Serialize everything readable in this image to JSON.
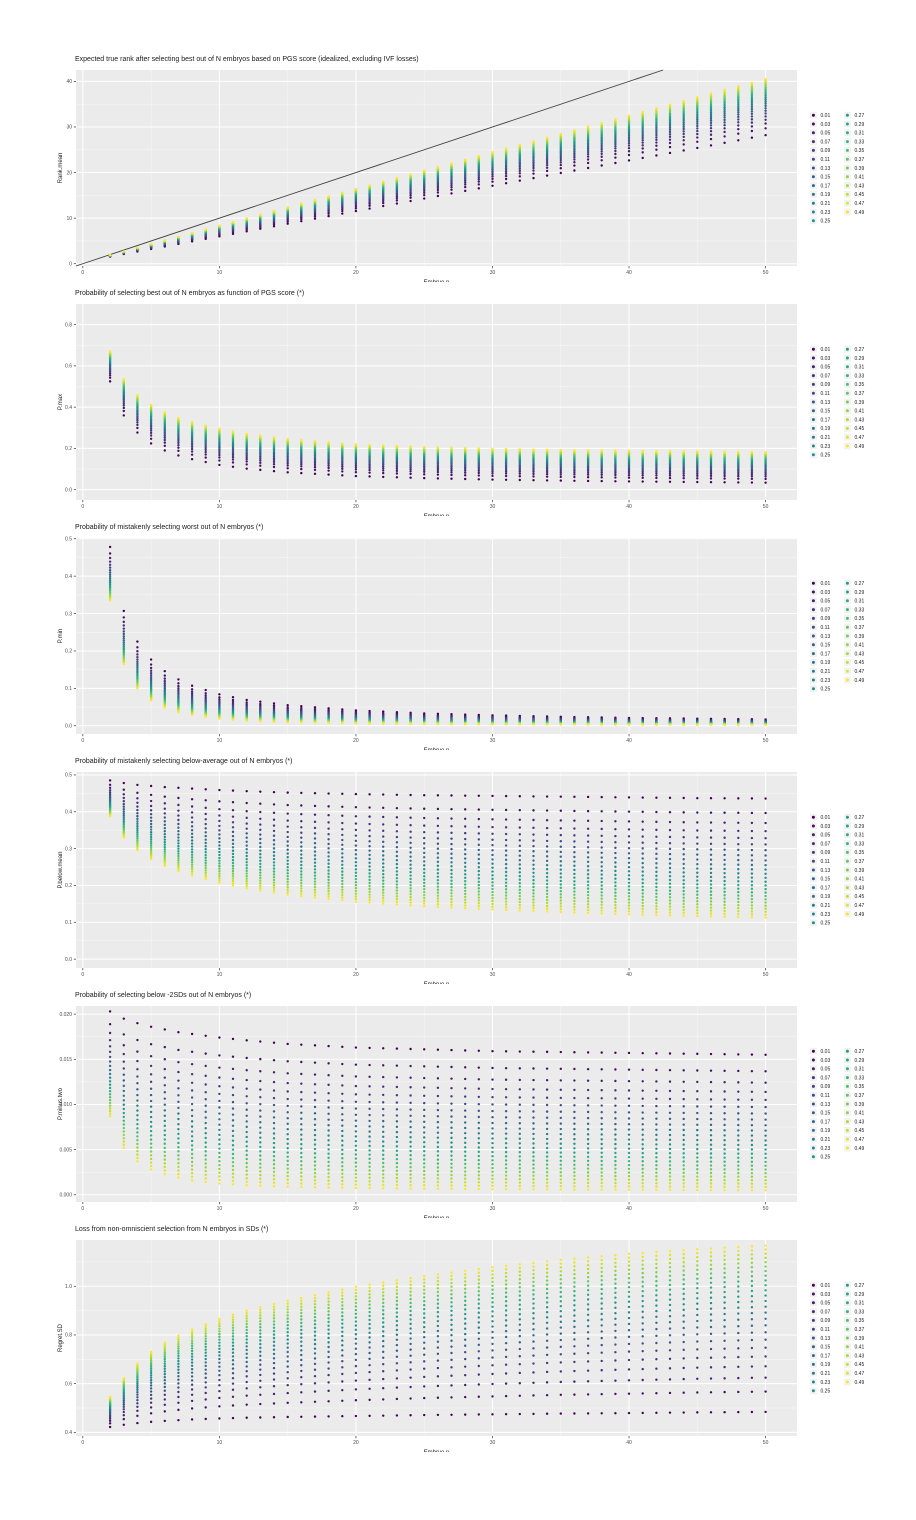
{
  "page": {
    "background": "#ffffff",
    "description_note": "Six stacked ggplot-style scatter panels, viridis-colored by PGS variance explained (0.01-0.49), x = number of embryos N (2-50)"
  },
  "x_axis": {
    "label": "Embryo.n",
    "ticks": [
      0,
      10,
      20,
      30,
      40,
      50
    ],
    "tick_labels": [
      "0",
      "10",
      "20",
      "30",
      "40",
      "50"
    ],
    "xlim": [
      -0.5,
      52.3
    ],
    "n_range": [
      2,
      50
    ],
    "n_step": 1
  },
  "legend": {
    "position": "right",
    "columns": 2,
    "column_split": 13,
    "labels": [
      "0.01",
      "0.03",
      "0.05",
      "0.07",
      "0.09",
      "0.11",
      "0.13",
      "0.15",
      "0.17",
      "0.19",
      "0.21",
      "0.23",
      "0.25",
      "0.27",
      "0.29",
      "0.31",
      "0.33",
      "0.35",
      "0.37",
      "0.39",
      "0.41",
      "0.43",
      "0.45",
      "0.47",
      "0.49"
    ]
  },
  "r2_values": [
    0.01,
    0.03,
    0.05,
    0.07,
    0.09,
    0.11,
    0.13,
    0.15,
    0.17,
    0.19,
    0.21,
    0.23,
    0.25,
    0.27,
    0.29,
    0.31,
    0.33,
    0.35,
    0.37,
    0.39,
    0.41,
    0.43,
    0.45,
    0.47,
    0.49
  ],
  "palette": {
    "name": "viridis",
    "anchors": [
      "#440154",
      "#482878",
      "#3E4A89",
      "#31688E",
      "#26828E",
      "#1F9E89",
      "#35B779",
      "#6DCD59",
      "#B4DE2C",
      "#FDE725"
    ],
    "panel_bg": "#EBEBEB",
    "grid_major": "#FFFFFF",
    "grid_minor": "#FFFFFF",
    "tick_mark": "#333333",
    "tick_text": "#4D4D4D",
    "title_text": "#1A1A1A",
    "legend_key_bg": "#F2F2F2",
    "abline": "#404040"
  },
  "chart_data": [
    {
      "type": "scatter",
      "title": "Expected true rank after selecting best out of N embryos based on PGS score (idealized, excluding IVF losses)",
      "xlabel": "Embryo.n",
      "ylabel": "Rank.mean",
      "ylim": [
        -0.5,
        42.5
      ],
      "yticks": [
        0,
        10,
        20,
        30,
        40
      ],
      "ytick_labels": [
        "0",
        "10",
        "20",
        "30",
        "40"
      ],
      "identity_line": true,
      "interpolation": "value(N,r2) = lo(N) + (hi(N)-lo(N)) * (sqrt(r2)-0.1)/0.6",
      "anchors_n": [
        2,
        3,
        4,
        5,
        6,
        7,
        8,
        10,
        12,
        15,
        20,
        25,
        30,
        35,
        40,
        45,
        50
      ],
      "curve_r2_001": [
        1.55,
        2.12,
        2.67,
        3.23,
        3.78,
        4.34,
        4.89,
        6.0,
        7.1,
        8.78,
        11.55,
        14.3,
        17.1,
        19.9,
        22.65,
        25.4,
        28.2
      ],
      "curve_r2_049": [
        1.89,
        2.7,
        3.5,
        4.3,
        5.11,
        5.91,
        6.72,
        8.33,
        9.94,
        12.35,
        16.38,
        20.4,
        24.43,
        28.45,
        32.48,
        36.5,
        40.53
      ]
    },
    {
      "type": "scatter",
      "title": "Probability of selecting best out of N embryos as function of PGS score (*)",
      "xlabel": "Embryo.n",
      "ylabel": "P.max",
      "ylim": [
        -0.05,
        0.9
      ],
      "yticks": [
        0,
        0.2,
        0.4,
        0.6,
        0.8
      ],
      "ytick_labels": [
        "0.0",
        "0.2",
        "0.4",
        "0.6",
        "0.8"
      ],
      "identity_line": false,
      "interpolation": "value(N,r2) = lo(N) + (hi(N)-lo(N)) * (sqrt(r2)-0.1)/0.6",
      "anchors_n": [
        2,
        3,
        4,
        5,
        6,
        7,
        8,
        10,
        12,
        15,
        20,
        25,
        30,
        35,
        40,
        45,
        50
      ],
      "curve_r2_001": [
        0.525,
        0.36,
        0.277,
        0.224,
        0.19,
        0.166,
        0.148,
        0.12,
        0.102,
        0.084,
        0.066,
        0.056,
        0.049,
        0.044,
        0.04,
        0.037,
        0.034
      ],
      "curve_r2_049": [
        0.67,
        0.535,
        0.458,
        0.41,
        0.375,
        0.348,
        0.327,
        0.295,
        0.27,
        0.245,
        0.219,
        0.206,
        0.198,
        0.192,
        0.188,
        0.185,
        0.182
      ]
    },
    {
      "type": "scatter",
      "title": "Probability of mistakenly selecting worst out of N embryos (*)",
      "xlabel": "Embryo.n",
      "ylabel": "P.min",
      "ylim": [
        -0.022,
        0.502
      ],
      "yticks": [
        0,
        0.1,
        0.2,
        0.3,
        0.4,
        0.5
      ],
      "ytick_labels": [
        "0.0",
        "0.1",
        "0.2",
        "0.3",
        "0.4",
        "0.5"
      ],
      "identity_line": false,
      "interpolation": "value(N,r2) = lo(N) + (hi(N)-lo(N)) * (sqrt(r2)-0.1)/0.6",
      "anchors_n": [
        2,
        3,
        4,
        5,
        6,
        7,
        8,
        10,
        12,
        15,
        20,
        25,
        30,
        35,
        40,
        45,
        50
      ],
      "curve_r2_001": [
        0.478,
        0.307,
        0.225,
        0.177,
        0.146,
        0.124,
        0.107,
        0.084,
        0.069,
        0.055,
        0.041,
        0.033,
        0.028,
        0.024,
        0.021,
        0.019,
        0.017
      ],
      "curve_r2_049": [
        0.335,
        0.165,
        0.1,
        0.068,
        0.049,
        0.037,
        0.029,
        0.019,
        0.0135,
        0.0095,
        0.0063,
        0.0047,
        0.0038,
        0.0032,
        0.0028,
        0.0025,
        0.0022
      ]
    },
    {
      "type": "scatter",
      "title": "Probability of mistakenly selecting below-average out of N embryos (*)",
      "xlabel": "Embryo.n",
      "ylabel": "P.below.mean",
      "ylim": [
        -0.024,
        0.508
      ],
      "yticks": [
        0,
        0.1,
        0.2,
        0.3,
        0.4,
        0.5
      ],
      "ytick_labels": [
        "0.0",
        "0.1",
        "0.2",
        "0.3",
        "0.4",
        "0.5"
      ],
      "identity_line": false,
      "interpolation": "value(N,r2) = lo(N) + (hi(N)-lo(N)) * (sqrt(r2)-0.1)/0.6",
      "anchors_n": [
        2,
        3,
        4,
        5,
        6,
        7,
        8,
        10,
        12,
        15,
        20,
        25,
        30,
        35,
        40,
        45,
        50
      ],
      "curve_r2_001": [
        0.485,
        0.478,
        0.473,
        0.47,
        0.467,
        0.465,
        0.463,
        0.459,
        0.456,
        0.452,
        0.448,
        0.445,
        0.443,
        0.441,
        0.439,
        0.437,
        0.436
      ],
      "curve_r2_049": [
        0.388,
        0.33,
        0.296,
        0.272,
        0.253,
        0.239,
        0.227,
        0.207,
        0.192,
        0.175,
        0.156,
        0.144,
        0.135,
        0.128,
        0.122,
        0.117,
        0.113
      ]
    },
    {
      "type": "scatter",
      "title": "Probability of selecting below -2SDs out of N embryos (*)",
      "xlabel": "Embryo.n",
      "ylabel": "P.minus.two",
      "ylim": [
        -0.0008,
        0.0209
      ],
      "yticks": [
        0,
        0.005,
        0.01,
        0.015,
        0.02
      ],
      "ytick_labels": [
        "0.000",
        "0.005",
        "0.010",
        "0.015",
        "0.020"
      ],
      "identity_line": false,
      "interpolation": "value(N,r2) = lo(N) + (hi(N)-lo(N)) * (sqrt(r2)-0.1)/0.6",
      "anchors_n": [
        2,
        3,
        4,
        5,
        6,
        7,
        8,
        10,
        12,
        15,
        20,
        25,
        30,
        35,
        40,
        45,
        50
      ],
      "curve_r2_001": [
        0.0203,
        0.0195,
        0.019,
        0.0186,
        0.0183,
        0.018,
        0.0178,
        0.0174,
        0.0171,
        0.0167,
        0.0163,
        0.0161,
        0.0159,
        0.0158,
        0.0157,
        0.0156,
        0.0155
      ],
      "curve_r2_049": [
        0.0087,
        0.0052,
        0.0037,
        0.0028,
        0.0023,
        0.0019,
        0.0016,
        0.00125,
        0.00105,
        0.0009,
        0.00075,
        0.00068,
        0.00062,
        0.00058,
        0.00055,
        0.00052,
        0.0005
      ]
    },
    {
      "type": "scatter",
      "title": "Loss from non-omniscient selection from N embryos in SDs (*)",
      "xlabel": "Embryo.n",
      "ylabel": "Regret.SD",
      "ylim": [
        0.385,
        1.19
      ],
      "yticks": [
        0.4,
        0.6,
        0.8,
        1.0
      ],
      "ytick_labels": [
        "0.4",
        "0.6",
        "0.8",
        "1.0"
      ],
      "identity_line": false,
      "interpolation": "value(N,r2) = lo(N) + (hi(N)-lo(N)) * (sqrt(r2)-0.1)/0.6",
      "anchors_n": [
        2,
        3,
        4,
        5,
        6,
        7,
        8,
        10,
        12,
        15,
        20,
        25,
        30,
        35,
        40,
        45,
        50
      ],
      "curve_r2_001": [
        0.422,
        0.431,
        0.438,
        0.443,
        0.447,
        0.45,
        0.453,
        0.457,
        0.46,
        0.463,
        0.467,
        0.471,
        0.474,
        0.477,
        0.479,
        0.482,
        0.484
      ],
      "curve_r2_049": [
        0.545,
        0.622,
        0.682,
        0.73,
        0.768,
        0.797,
        0.822,
        0.866,
        0.9,
        0.94,
        0.998,
        1.042,
        1.078,
        1.108,
        1.133,
        1.152,
        1.167
      ]
    }
  ]
}
